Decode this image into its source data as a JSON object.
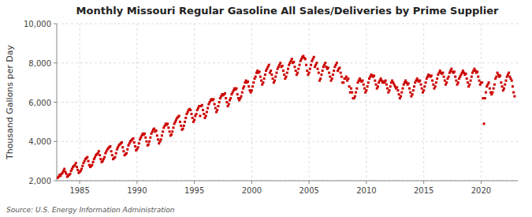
{
  "chart_data": {
    "type": "scatter",
    "title": "Monthly Missouri Regular Gasoline All Sales/Deliveries by Prime Supplier",
    "ylabel": "Thousand Gallons per Day",
    "source": "Source: U.S. Energy Information Administration",
    "color": "#cc0000",
    "marker": "square",
    "grid": true,
    "xlim": [
      1983.0,
      2023.2
    ],
    "xticks": [
      1985,
      1990,
      1995,
      2000,
      2005,
      2010,
      2015,
      2020
    ],
    "ylim": [
      2000,
      10000
    ],
    "yticks": [
      {
        "value": 2000,
        "label": "2,000"
      },
      {
        "value": 4000,
        "label": "4,000"
      },
      {
        "value": 6000,
        "label": "6,000"
      },
      {
        "value": 8000,
        "label": "8,000"
      },
      {
        "value": 10000,
        "label": "10,000"
      }
    ],
    "x": [
      1983.083,
      1983.167,
      1983.25,
      1983.333,
      1983.417,
      1983.5,
      1983.583,
      1983.667,
      1983.75,
      1983.833,
      1983.917,
      1984.0,
      1984.083,
      1984.167,
      1984.25,
      1984.333,
      1984.417,
      1984.5,
      1984.583,
      1984.667,
      1984.75,
      1984.833,
      1984.917,
      1985.0,
      1985.083,
      1985.167,
      1985.25,
      1985.333,
      1985.417,
      1985.5,
      1985.583,
      1985.667,
      1985.75,
      1985.833,
      1985.917,
      1986.0,
      1986.083,
      1986.167,
      1986.25,
      1986.333,
      1986.417,
      1986.5,
      1986.583,
      1986.667,
      1986.75,
      1986.833,
      1986.917,
      1987.0,
      1987.083,
      1987.167,
      1987.25,
      1987.333,
      1987.417,
      1987.5,
      1987.583,
      1987.667,
      1987.75,
      1987.833,
      1987.917,
      1988.0,
      1988.083,
      1988.167,
      1988.25,
      1988.333,
      1988.417,
      1988.5,
      1988.583,
      1988.667,
      1988.75,
      1988.833,
      1988.917,
      1989.0,
      1989.083,
      1989.167,
      1989.25,
      1989.333,
      1989.417,
      1989.5,
      1989.583,
      1989.667,
      1989.75,
      1989.833,
      1989.917,
      1990.0,
      1990.083,
      1990.167,
      1990.25,
      1990.333,
      1990.417,
      1990.5,
      1990.583,
      1990.667,
      1990.75,
      1990.833,
      1990.917,
      1991.0,
      1991.083,
      1991.167,
      1991.25,
      1991.333,
      1991.417,
      1991.5,
      1991.583,
      1991.667,
      1991.75,
      1991.833,
      1991.917,
      1992.0,
      1992.083,
      1992.167,
      1992.25,
      1992.333,
      1992.417,
      1992.5,
      1992.583,
      1992.667,
      1992.75,
      1992.833,
      1992.917,
      1993.0,
      1993.083,
      1993.167,
      1993.25,
      1993.333,
      1993.417,
      1993.5,
      1993.583,
      1993.667,
      1993.75,
      1993.833,
      1993.917,
      1994.0,
      1994.083,
      1994.167,
      1994.25,
      1994.333,
      1994.417,
      1994.5,
      1994.583,
      1994.667,
      1994.75,
      1994.833,
      1994.917,
      1995.0,
      1995.083,
      1995.167,
      1995.25,
      1995.333,
      1995.417,
      1995.5,
      1995.583,
      1995.667,
      1995.75,
      1995.833,
      1995.917,
      1996.0,
      1996.083,
      1996.167,
      1996.25,
      1996.333,
      1996.417,
      1996.5,
      1996.583,
      1996.667,
      1996.75,
      1996.833,
      1996.917,
      1997.0,
      1997.083,
      1997.167,
      1997.25,
      1997.333,
      1997.417,
      1997.5,
      1997.583,
      1997.667,
      1997.75,
      1997.833,
      1997.917,
      1998.0,
      1998.083,
      1998.167,
      1998.25,
      1998.333,
      1998.417,
      1998.5,
      1998.583,
      1998.667,
      1998.75,
      1998.833,
      1998.917,
      1999.0,
      1999.083,
      1999.167,
      1999.25,
      1999.333,
      1999.417,
      1999.5,
      1999.583,
      1999.667,
      1999.75,
      1999.833,
      1999.917,
      2000.0,
      2000.083,
      2000.167,
      2000.25,
      2000.333,
      2000.417,
      2000.5,
      2000.583,
      2000.667,
      2000.75,
      2000.833,
      2000.917,
      2001.0,
      2001.083,
      2001.167,
      2001.25,
      2001.333,
      2001.417,
      2001.5,
      2001.583,
      2001.667,
      2001.75,
      2001.833,
      2001.917,
      2002.0,
      2002.083,
      2002.167,
      2002.25,
      2002.333,
      2002.417,
      2002.5,
      2002.583,
      2002.667,
      2002.75,
      2002.833,
      2002.917,
      2003.0,
      2003.083,
      2003.167,
      2003.25,
      2003.333,
      2003.417,
      2003.5,
      2003.583,
      2003.667,
      2003.75,
      2003.833,
      2003.917,
      2004.0,
      2004.083,
      2004.167,
      2004.25,
      2004.333,
      2004.417,
      2004.5,
      2004.583,
      2004.667,
      2004.75,
      2004.833,
      2004.917,
      2005.0,
      2005.083,
      2005.167,
      2005.25,
      2005.333,
      2005.417,
      2005.5,
      2005.583,
      2005.667,
      2005.75,
      2005.833,
      2005.917,
      2006.0,
      2006.083,
      2006.167,
      2006.25,
      2006.333,
      2006.417,
      2006.5,
      2006.583,
      2006.667,
      2006.75,
      2006.833,
      2006.917,
      2007.0,
      2007.083,
      2007.167,
      2007.25,
      2007.333,
      2007.417,
      2007.5,
      2007.583,
      2007.667,
      2007.75,
      2007.833,
      2007.917,
      2008.0,
      2008.083,
      2008.167,
      2008.25,
      2008.333,
      2008.417,
      2008.5,
      2008.583,
      2008.667,
      2008.75,
      2008.833,
      2008.917,
      2009.0,
      2009.083,
      2009.167,
      2009.25,
      2009.333,
      2009.417,
      2009.5,
      2009.583,
      2009.667,
      2009.75,
      2009.833,
      2009.917,
      2010.0,
      2010.083,
      2010.167,
      2010.25,
      2010.333,
      2010.417,
      2010.5,
      2010.583,
      2010.667,
      2010.75,
      2010.833,
      2010.917,
      2011.0,
      2011.083,
      2011.167,
      2011.25,
      2011.333,
      2011.417,
      2011.5,
      2011.583,
      2011.667,
      2011.75,
      2011.833,
      2011.917,
      2012.0,
      2012.083,
      2012.167,
      2012.25,
      2012.333,
      2012.417,
      2012.5,
      2012.583,
      2012.667,
      2012.75,
      2012.833,
      2012.917,
      2013.0,
      2013.083,
      2013.167,
      2013.25,
      2013.333,
      2013.417,
      2013.5,
      2013.583,
      2013.667,
      2013.75,
      2013.833,
      2013.917,
      2014.0,
      2014.083,
      2014.167,
      2014.25,
      2014.333,
      2014.417,
      2014.5,
      2014.583,
      2014.667,
      2014.75,
      2014.833,
      2014.917,
      2015.0,
      2015.083,
      2015.167,
      2015.25,
      2015.333,
      2015.417,
      2015.5,
      2015.583,
      2015.667,
      2015.75,
      2015.833,
      2015.917,
      2016.0,
      2016.083,
      2016.167,
      2016.25,
      2016.333,
      2016.417,
      2016.5,
      2016.583,
      2016.667,
      2016.75,
      2016.833,
      2016.917,
      2017.0,
      2017.083,
      2017.167,
      2017.25,
      2017.333,
      2017.417,
      2017.5,
      2017.583,
      2017.667,
      2017.75,
      2017.833,
      2017.917,
      2018.0,
      2018.083,
      2018.167,
      2018.25,
      2018.333,
      2018.417,
      2018.5,
      2018.583,
      2018.667,
      2018.75,
      2018.833,
      2018.917,
      2019.0,
      2019.083,
      2019.167,
      2019.25,
      2019.333,
      2019.417,
      2019.5,
      2019.583,
      2019.667,
      2019.75,
      2019.833,
      2019.917,
      2020.0,
      2020.083,
      2020.167,
      2020.25,
      2020.333,
      2020.417,
      2020.5,
      2020.583,
      2020.667,
      2020.75,
      2020.833,
      2020.917,
      2021.0,
      2021.083,
      2021.167,
      2021.25,
      2021.333,
      2021.417,
      2021.5,
      2021.583,
      2021.667,
      2021.75,
      2021.833,
      2021.917,
      2022.0,
      2022.083,
      2022.167,
      2022.25,
      2022.333,
      2022.417,
      2022.5,
      2022.583,
      2022.667,
      2022.75,
      2022.833,
      2022.917
    ],
    "values": [
      2150,
      2200,
      2300,
      2250,
      2350,
      2400,
      2500,
      2600,
      2450,
      2350,
      2200,
      2250,
      2300,
      2350,
      2500,
      2600,
      2700,
      2750,
      2800,
      2900,
      2700,
      2550,
      2400,
      2450,
      2500,
      2600,
      2750,
      2900,
      3000,
      3100,
      3150,
      3200,
      3000,
      2800,
      2700,
      2750,
      2800,
      2950,
      3100,
      3200,
      3300,
      3350,
      3400,
      3500,
      3300,
      3100,
      2950,
      3000,
      3100,
      3200,
      3400,
      3500,
      3600,
      3650,
      3700,
      3750,
      3500,
      3300,
      3100,
      3150,
      3200,
      3400,
      3600,
      3700,
      3800,
      3850,
      3900,
      3950,
      3700,
      3500,
      3300,
      3350,
      3400,
      3600,
      3800,
      3900,
      4000,
      4050,
      4100,
      4150,
      3950,
      3750,
      3550,
      3600,
      3700,
      3900,
      4100,
      4200,
      4300,
      4400,
      4350,
      4400,
      4200,
      4000,
      3800,
      3850,
      4000,
      4200,
      4400,
      4500,
      4600,
      4650,
      4500,
      4550,
      4300,
      4100,
      3900,
      4000,
      4100,
      4300,
      4500,
      4700,
      4800,
      4900,
      4850,
      4900,
      4700,
      4500,
      4300,
      4350,
      4500,
      4700,
      4900,
      5000,
      5100,
      5200,
      5250,
      5300,
      5000,
      4800,
      4600,
      4650,
      4800,
      5000,
      5200,
      5400,
      5500,
      5600,
      5650,
      5600,
      5400,
      5200,
      5000,
      5100,
      5300,
      5400,
      5600,
      5700,
      5800,
      5300,
      5800,
      5850,
      5600,
      5400,
      5200,
      5300,
      5500,
      5700,
      5900,
      6000,
      6100,
      6150,
      6100,
      6150,
      5900,
      5700,
      5500,
      5600,
      5800,
      6000,
      6200,
      6300,
      6400,
      6350,
      6400,
      6450,
      6200,
      6000,
      5800,
      5900,
      6100,
      6200,
      6400,
      6500,
      6600,
      6700,
      6650,
      6700,
      6400,
      6200,
      6100,
      6200,
      6300,
      6500,
      6700,
      6800,
      7000,
      7100,
      7000,
      7050,
      6800,
      6600,
      6500,
      6600,
      6800,
      7000,
      7200,
      7300,
      7500,
      7600,
      7500,
      7550,
      7300,
      7100,
      6900,
      7000,
      7200,
      7400,
      7600,
      7700,
      7800,
      7900,
      7500,
      7600,
      7400,
      7200,
      7000,
      7100,
      7300,
      7500,
      7700,
      7800,
      7900,
      8000,
      7800,
      7850,
      7600,
      7400,
      7200,
      7300,
      7500,
      7700,
      7900,
      8000,
      8100,
      8200,
      8000,
      8050,
      7800,
      7600,
      7400,
      7500,
      7700,
      7900,
      8100,
      8200,
      8300,
      8350,
      8250,
      8200,
      7900,
      7600,
      7400,
      7500,
      7700,
      7900,
      8100,
      8200,
      8300,
      7800,
      7900,
      8000,
      7700,
      7500,
      7100,
      7200,
      7400,
      7600,
      7800,
      7900,
      8000,
      7800,
      7700,
      7750,
      7500,
      7300,
      7100,
      7200,
      7400,
      7600,
      7800,
      7900,
      8000,
      7600,
      7700,
      7750,
      7500,
      7300,
      7000,
      7000,
      7200,
      7200,
      7300,
      7100,
      7200,
      6800,
      6500,
      6700,
      6500,
      6200,
      6200,
      6300,
      6500,
      6700,
      7000,
      7100,
      7200,
      7100,
      7050,
      7100,
      6900,
      6700,
      6500,
      6600,
      6800,
      7000,
      7200,
      7300,
      7400,
      7350,
      7300,
      7350,
      7100,
      6900,
      6700,
      6800,
      7000,
      7100,
      7200,
      7100,
      7000,
      7050,
      7000,
      7100,
      6900,
      6700,
      6500,
      6600,
      6800,
      7000,
      7100,
      7000,
      6900,
      6800,
      6700,
      6750,
      6600,
      6400,
      6200,
      6300,
      6500,
      6700,
      6900,
      7000,
      7100,
      7000,
      6900,
      6950,
      6700,
      6500,
      6300,
      6400,
      6600,
      6800,
      7000,
      7100,
      7200,
      7100,
      7050,
      7100,
      6900,
      6700,
      6500,
      6600,
      6800,
      7000,
      7200,
      7300,
      7400,
      7350,
      7300,
      7350,
      7100,
      6900,
      6700,
      6800,
      7000,
      7200,
      7400,
      7500,
      7600,
      7500,
      7450,
      7500,
      7300,
      7100,
      6900,
      7000,
      7200,
      7300,
      7500,
      7600,
      7700,
      7550,
      7500,
      7550,
      7300,
      7100,
      6900,
      7000,
      7200,
      7300,
      7400,
      7500,
      7600,
      7500,
      7400,
      7450,
      7200,
      7000,
      6800,
      6900,
      7100,
      7300,
      7500,
      7600,
      7700,
      7600,
      7500,
      7550,
      7300,
      7100,
      6900,
      7000,
      7000,
      6200,
      4900,
      6200,
      6500,
      6800,
      6900,
      7000,
      6700,
      6500,
      6400,
      6500,
      6700,
      6900,
      7200,
      7300,
      7500,
      7400,
      7300,
      7350,
      7000,
      6800,
      6600,
      6700,
      6900,
      7100,
      7300,
      7400,
      7500,
      7300,
      7200,
      7100,
      6800,
      6500,
      6300
    ]
  }
}
